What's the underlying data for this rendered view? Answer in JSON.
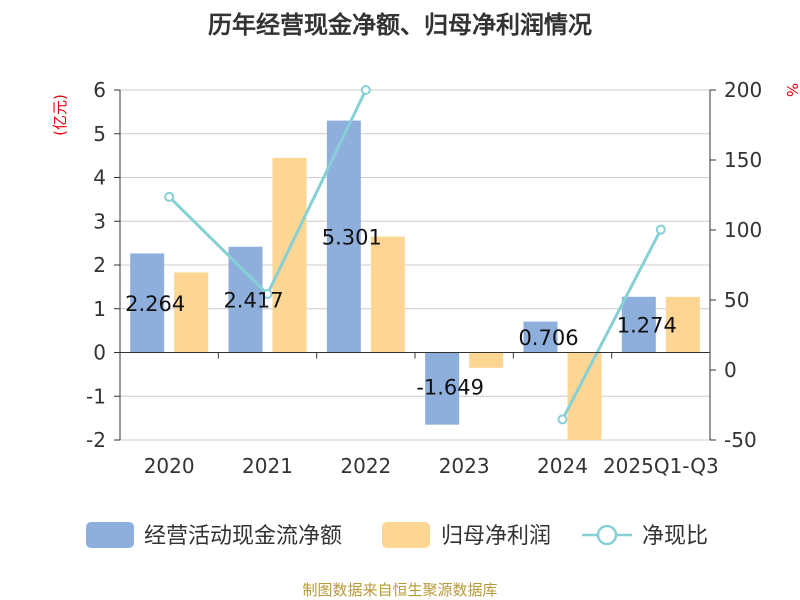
{
  "chart_data": {
    "type": "bar",
    "title": "历年经营现金净额、归母净利润情况",
    "categories": [
      "2020",
      "2021",
      "2022",
      "2023",
      "2024",
      "2025Q1-Q3"
    ],
    "series": [
      {
        "name": "经营活动现金流净额",
        "kind": "bar",
        "axis": "left",
        "color": "#8eaedb",
        "values": [
          2.264,
          2.417,
          5.301,
          -1.649,
          0.706,
          1.274
        ],
        "labels": [
          "2.264",
          "2.417",
          "5.301",
          "-1.649",
          "0.706",
          "1.274"
        ]
      },
      {
        "name": "归母净利润",
        "kind": "bar",
        "axis": "left",
        "color": "#fdd694",
        "values": [
          1.83,
          4.45,
          2.65,
          -0.35,
          -2.0,
          1.27
        ]
      },
      {
        "name": "净现比",
        "kind": "line",
        "axis": "right",
        "color": "#86d0d6",
        "values": [
          123.7,
          54.3,
          200.0,
          null,
          -35.3,
          100.3
        ]
      }
    ],
    "yleft": {
      "label": "(亿元)",
      "min": -2,
      "max": 6,
      "ticks": [
        "-2",
        "-1",
        "0",
        "1",
        "2",
        "3",
        "4",
        "5",
        "6"
      ]
    },
    "yright": {
      "label": "%",
      "min": -50,
      "max": 200,
      "ticks": [
        "-50",
        "0",
        "50",
        "100",
        "150",
        "200"
      ]
    },
    "legend_position": "bottom",
    "grid": true
  },
  "source": "制图数据来自恒生聚源数据库"
}
